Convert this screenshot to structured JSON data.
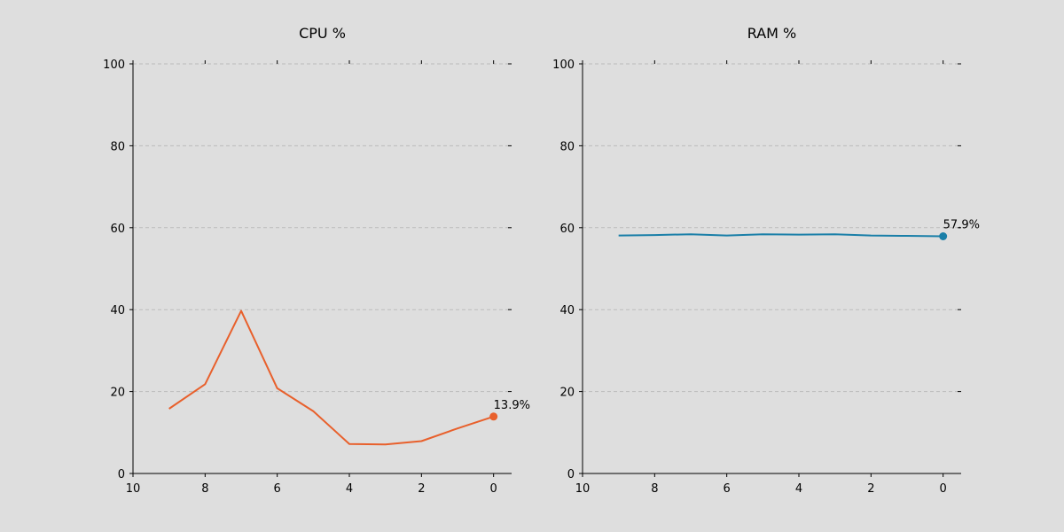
{
  "chart_data": [
    {
      "type": "line",
      "title": "CPU %",
      "xlabel": "",
      "ylabel": "",
      "xlim": [
        10,
        -0.5
      ],
      "ylim": [
        0,
        100
      ],
      "x_ticks": [
        10,
        8,
        6,
        4,
        2,
        0
      ],
      "y_ticks": [
        0,
        20,
        40,
        60,
        80,
        100
      ],
      "grid": "y-dashed",
      "series": [
        {
          "color": "#e8602c",
          "x": [
            9,
            8,
            7,
            6,
            5,
            4,
            3,
            2,
            1,
            0
          ],
          "values": [
            15.8,
            21.8,
            39.7,
            20.8,
            15.2,
            7.2,
            7.1,
            7.9,
            11.0,
            13.9
          ]
        }
      ],
      "last_value_label": "13.9%"
    },
    {
      "type": "line",
      "title": "RAM %",
      "xlabel": "",
      "ylabel": "",
      "xlim": [
        10,
        -0.5
      ],
      "ylim": [
        0,
        100
      ],
      "x_ticks": [
        10,
        8,
        6,
        4,
        2,
        0
      ],
      "y_ticks": [
        0,
        20,
        40,
        60,
        80,
        100
      ],
      "grid": "y-dashed",
      "series": [
        {
          "color": "#1a7fa8",
          "x": [
            9,
            8,
            7,
            6,
            5,
            4,
            3,
            2,
            1,
            0
          ],
          "values": [
            58.1,
            58.2,
            58.4,
            58.1,
            58.4,
            58.3,
            58.4,
            58.1,
            58.0,
            57.9
          ]
        }
      ],
      "last_value_label": "57.9%"
    }
  ]
}
